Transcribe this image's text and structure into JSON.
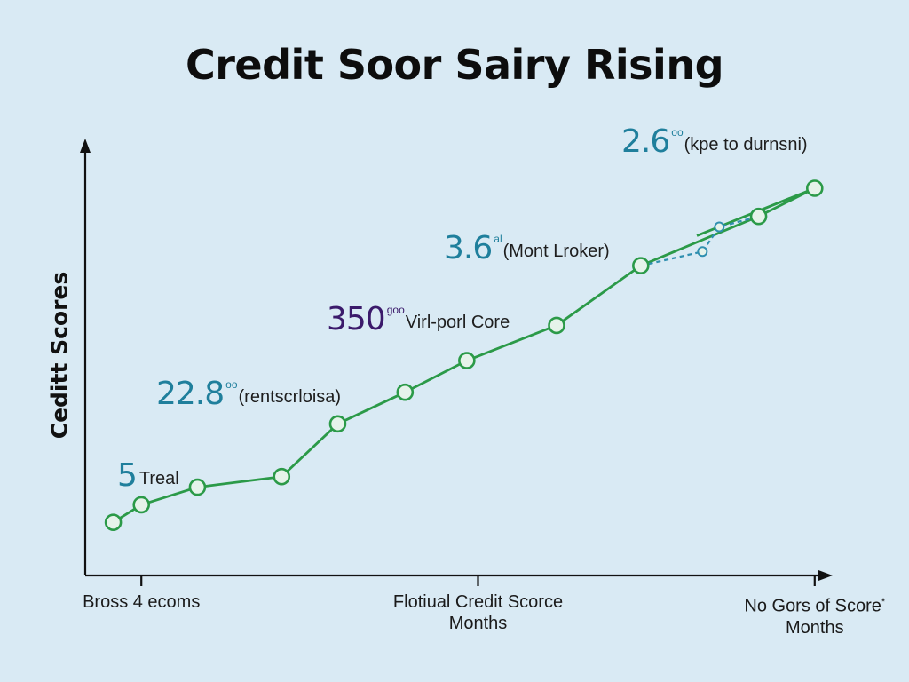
{
  "chart_data": {
    "type": "line",
    "title": "Credit Soor Sairy Rising",
    "ylabel": "Ceditt  Scores",
    "xlabel": "",
    "x_ticks": [
      {
        "label": "Bross 4 ecoms",
        "x": 1
      },
      {
        "label": "Flotiual Credit Scorce",
        "sublabel": "Months",
        "x": 7
      },
      {
        "label": "No Gors of Score",
        "sublabel": "Months",
        "marker": "*",
        "x": 13
      }
    ],
    "xlim": [
      0,
      14.0
    ],
    "ylim": [
      0,
      100
    ],
    "series": [
      {
        "color": "#2b9a48",
        "style": "solid",
        "points": [
          {
            "x": 0.5,
            "y": 5
          },
          {
            "x": 1.0,
            "y": 10
          },
          {
            "x": 2.0,
            "y": 15
          },
          {
            "x": 3.5,
            "y": 18
          },
          {
            "x": 4.5,
            "y": 33
          },
          {
            "x": 5.7,
            "y": 42
          },
          {
            "x": 6.8,
            "y": 51
          },
          {
            "x": 8.4,
            "y": 61
          },
          {
            "x": 9.9,
            "y": 78
          },
          {
            "x": 12.0,
            "y": 92
          },
          {
            "x": 13.0,
            "y": 100
          }
        ],
        "tail_segment": [
          {
            "x": 10.9,
            "y": 86.5
          },
          {
            "x": 13.0,
            "y": 100
          }
        ]
      },
      {
        "color": "#2f8fb0",
        "style": "dashed",
        "points": [
          {
            "x": 9.9,
            "y": 78
          },
          {
            "x": 11.0,
            "y": 82
          },
          {
            "x": 11.3,
            "y": 89
          },
          {
            "x": 12.0,
            "y": 92
          }
        ]
      }
    ],
    "annotations": [
      {
        "value": "5",
        "superscript": "",
        "text": "Treal",
        "color": "#1f7f9c"
      },
      {
        "value": "22.8",
        "superscript": "oo",
        "text": "(rentscrloisa)",
        "color": "#1f7f9c"
      },
      {
        "value": "350",
        "superscript": "goo",
        "text": "Virl-porl Core",
        "color": "#3b1a6b"
      },
      {
        "value": "3.6",
        "superscript": "al",
        "text": "(Mont Lroker)",
        "color": "#1f7f9c"
      },
      {
        "value": "2.6",
        "superscript": "oo",
        "text": "(kpe to durnsni)",
        "color": "#1f7f9c"
      }
    ],
    "grid": false,
    "legend": "none"
  }
}
